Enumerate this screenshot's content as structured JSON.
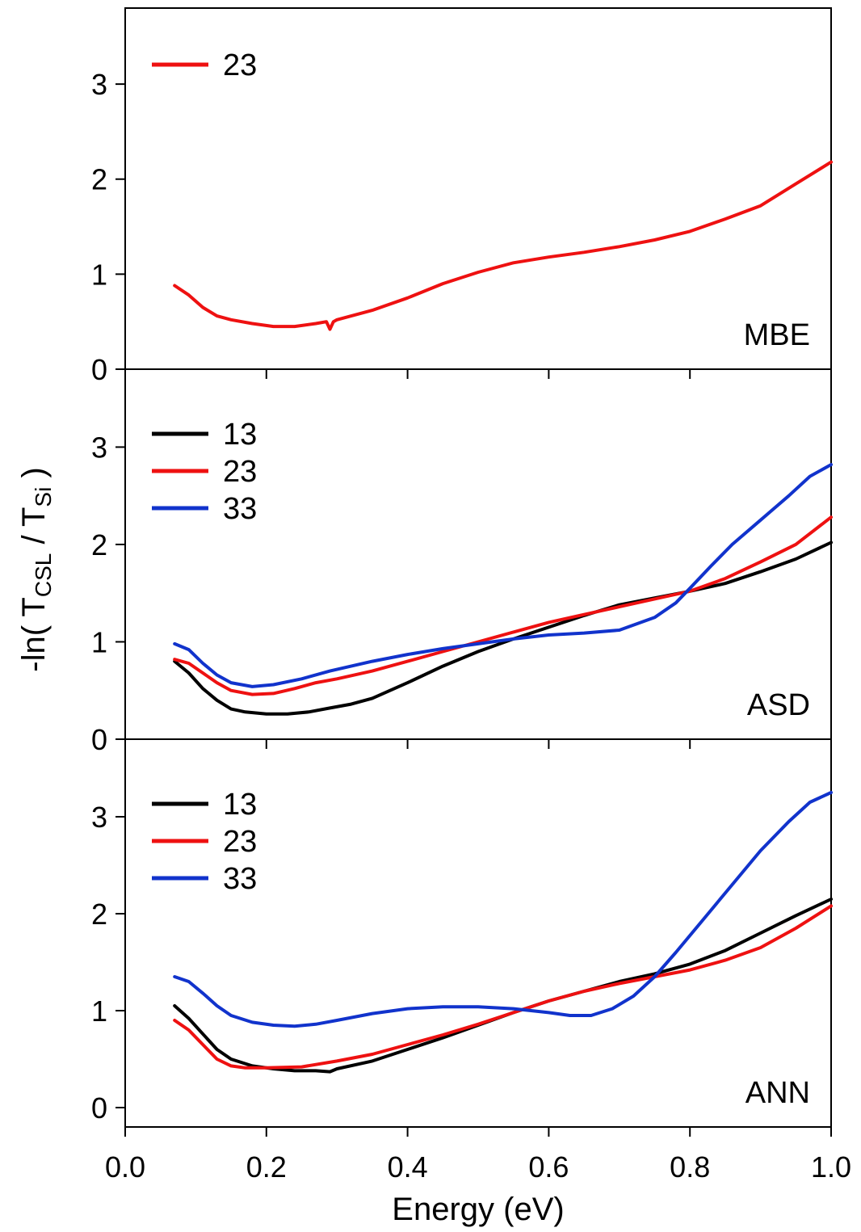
{
  "colors": {
    "13": "#000000",
    "23": "#ee1111",
    "33": "#1133cc"
  },
  "chart_data": {
    "type": "line",
    "xlabel": "Energy (eV)",
    "ylabel": {
      "prefix": "-ln( T",
      "sub1": "CSL",
      "middle": " / T",
      "sub2": "Si",
      "suffix": " )"
    },
    "xlim": [
      0.0,
      1.0
    ],
    "xticks": [
      "0.0",
      "0.2",
      "0.4",
      "0.6",
      "0.8",
      "1.0"
    ],
    "shared_x_axis": true,
    "legend_placement": "top-left",
    "panels": [
      {
        "label": "MBE",
        "ylim": [
          0,
          3.8
        ],
        "yticks": [
          "0",
          "1",
          "2",
          "3"
        ],
        "series": [
          {
            "name": "23",
            "color_key": "23",
            "x": [
              0.07,
              0.09,
              0.11,
              0.13,
              0.15,
              0.18,
              0.21,
              0.24,
              0.27,
              0.285,
              0.29,
              0.295,
              0.3,
              0.35,
              0.4,
              0.45,
              0.5,
              0.55,
              0.6,
              0.65,
              0.7,
              0.75,
              0.8,
              0.85,
              0.9,
              0.95,
              1.0
            ],
            "y": [
              0.88,
              0.78,
              0.65,
              0.56,
              0.52,
              0.48,
              0.45,
              0.45,
              0.48,
              0.5,
              0.42,
              0.5,
              0.52,
              0.62,
              0.75,
              0.9,
              1.02,
              1.12,
              1.18,
              1.23,
              1.29,
              1.36,
              1.45,
              1.58,
              1.72,
              1.95,
              2.18
            ]
          }
        ]
      },
      {
        "label": "ASD",
        "ylim": [
          0,
          3.8
        ],
        "yticks": [
          "0",
          "1",
          "2",
          "3"
        ],
        "series": [
          {
            "name": "13",
            "color_key": "13",
            "x": [
              0.07,
              0.09,
              0.11,
              0.13,
              0.15,
              0.17,
              0.2,
              0.23,
              0.26,
              0.29,
              0.32,
              0.35,
              0.4,
              0.45,
              0.5,
              0.55,
              0.6,
              0.65,
              0.7,
              0.75,
              0.8,
              0.85,
              0.9,
              0.95,
              1.0
            ],
            "y": [
              0.8,
              0.68,
              0.52,
              0.4,
              0.31,
              0.28,
              0.26,
              0.26,
              0.28,
              0.32,
              0.36,
              0.42,
              0.58,
              0.75,
              0.9,
              1.03,
              1.15,
              1.27,
              1.38,
              1.45,
              1.52,
              1.6,
              1.72,
              1.85,
              2.02
            ]
          },
          {
            "name": "23",
            "color_key": "23",
            "x": [
              0.07,
              0.09,
              0.11,
              0.13,
              0.15,
              0.18,
              0.21,
              0.24,
              0.27,
              0.3,
              0.35,
              0.4,
              0.45,
              0.5,
              0.55,
              0.6,
              0.65,
              0.7,
              0.75,
              0.8,
              0.85,
              0.9,
              0.95,
              1.0
            ],
            "y": [
              0.82,
              0.78,
              0.68,
              0.58,
              0.5,
              0.46,
              0.47,
              0.52,
              0.58,
              0.62,
              0.7,
              0.8,
              0.9,
              1.0,
              1.1,
              1.2,
              1.28,
              1.36,
              1.44,
              1.52,
              1.65,
              1.82,
              2.0,
              2.28
            ]
          },
          {
            "name": "33",
            "color_key": "33",
            "x": [
              0.07,
              0.09,
              0.11,
              0.13,
              0.15,
              0.18,
              0.21,
              0.25,
              0.29,
              0.35,
              0.4,
              0.45,
              0.5,
              0.55,
              0.6,
              0.65,
              0.7,
              0.75,
              0.78,
              0.8,
              0.83,
              0.86,
              0.9,
              0.94,
              0.97,
              1.0
            ],
            "y": [
              0.98,
              0.92,
              0.78,
              0.66,
              0.58,
              0.54,
              0.56,
              0.62,
              0.7,
              0.8,
              0.87,
              0.93,
              0.98,
              1.03,
              1.07,
              1.09,
              1.12,
              1.25,
              1.4,
              1.55,
              1.78,
              2.0,
              2.25,
              2.5,
              2.7,
              2.82
            ]
          }
        ]
      },
      {
        "label": "ANN",
        "ylim": [
          -0.2,
          3.8
        ],
        "yticks": [
          "0",
          "1",
          "2",
          "3"
        ],
        "series": [
          {
            "name": "13",
            "color_key": "13",
            "x": [
              0.07,
              0.09,
              0.11,
              0.13,
              0.15,
              0.18,
              0.21,
              0.24,
              0.27,
              0.29,
              0.3,
              0.35,
              0.4,
              0.45,
              0.5,
              0.55,
              0.6,
              0.65,
              0.7,
              0.75,
              0.8,
              0.85,
              0.9,
              0.95,
              1.0
            ],
            "y": [
              1.05,
              0.92,
              0.76,
              0.6,
              0.5,
              0.43,
              0.4,
              0.38,
              0.38,
              0.37,
              0.4,
              0.48,
              0.6,
              0.72,
              0.85,
              0.98,
              1.1,
              1.2,
              1.3,
              1.38,
              1.48,
              1.62,
              1.8,
              1.98,
              2.15
            ]
          },
          {
            "name": "23",
            "color_key": "23",
            "x": [
              0.07,
              0.09,
              0.11,
              0.13,
              0.15,
              0.17,
              0.2,
              0.25,
              0.3,
              0.35,
              0.4,
              0.45,
              0.5,
              0.55,
              0.6,
              0.65,
              0.7,
              0.75,
              0.8,
              0.85,
              0.9,
              0.95,
              1.0
            ],
            "y": [
              0.9,
              0.8,
              0.65,
              0.5,
              0.43,
              0.41,
              0.41,
              0.42,
              0.48,
              0.55,
              0.65,
              0.75,
              0.86,
              0.98,
              1.1,
              1.2,
              1.28,
              1.35,
              1.42,
              1.52,
              1.65,
              1.85,
              2.08
            ]
          },
          {
            "name": "33",
            "color_key": "33",
            "x": [
              0.07,
              0.09,
              0.11,
              0.13,
              0.15,
              0.18,
              0.21,
              0.24,
              0.27,
              0.3,
              0.35,
              0.4,
              0.45,
              0.5,
              0.55,
              0.6,
              0.63,
              0.66,
              0.69,
              0.72,
              0.75,
              0.78,
              0.82,
              0.86,
              0.9,
              0.94,
              0.97,
              1.0
            ],
            "y": [
              1.35,
              1.3,
              1.18,
              1.05,
              0.95,
              0.88,
              0.85,
              0.84,
              0.86,
              0.9,
              0.97,
              1.02,
              1.04,
              1.04,
              1.02,
              0.98,
              0.95,
              0.95,
              1.02,
              1.15,
              1.35,
              1.6,
              1.95,
              2.3,
              2.65,
              2.95,
              3.15,
              3.25
            ]
          }
        ]
      }
    ]
  }
}
